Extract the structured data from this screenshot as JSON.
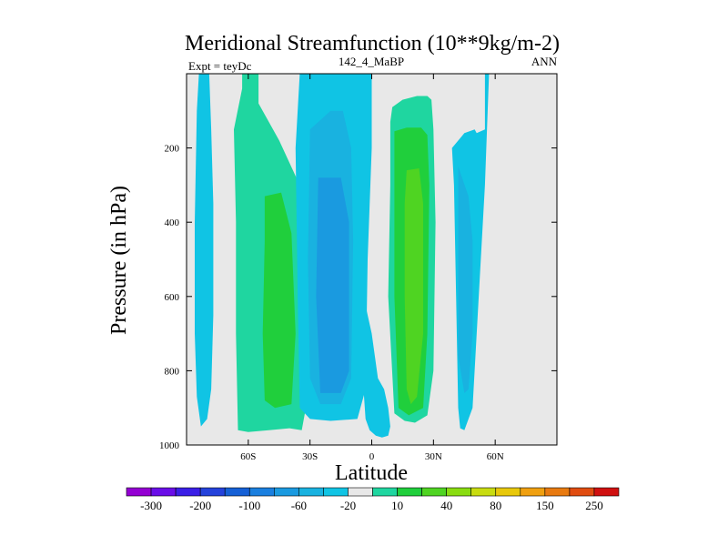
{
  "chart_data": {
    "type": "heatmap",
    "title": "Meridional Streamfunction (10**9kg/m-2)",
    "left_string": "Expt = teyDc",
    "center_string": "142_4_MaBP",
    "right_string": "ANN",
    "xlabel": "Latitude",
    "ylabel": "Pressure (in hPa)",
    "xlim": [
      -90,
      90
    ],
    "ylim": [
      1000,
      0
    ],
    "xticks": [
      {
        "value": -60,
        "label": "60S"
      },
      {
        "value": -30,
        "label": "30S"
      },
      {
        "value": 0,
        "label": "0"
      },
      {
        "value": 30,
        "label": "30N"
      },
      {
        "value": 60,
        "label": "60N"
      }
    ],
    "yticks": [
      {
        "value": 200,
        "label": "200"
      },
      {
        "value": 400,
        "label": "400"
      },
      {
        "value": 600,
        "label": "600"
      },
      {
        "value": 800,
        "label": "800"
      },
      {
        "value": 1000,
        "label": "1000"
      }
    ],
    "background_color": "#e8e8e8",
    "colorbar": {
      "levels": [
        -300,
        -250,
        -200,
        -150,
        -100,
        -80,
        -60,
        -40,
        -20,
        -10,
        10,
        20,
        40,
        60,
        80,
        100,
        150,
        200,
        250,
        300
      ],
      "labels": [
        "-300",
        "-200",
        "-100",
        "-60",
        "-20",
        "10",
        "40",
        "80",
        "150",
        "250"
      ],
      "colors": [
        "#9400d3",
        "#6a0de8",
        "#3a1ee6",
        "#2442db",
        "#1560d6",
        "#1a7fdf",
        "#1a9ae0",
        "#19b2e0",
        "#10c4e4",
        "#e8e8e8",
        "#1fd6a0",
        "#20cf3c",
        "#4fd422",
        "#89dc10",
        "#c8dc10",
        "#e8c80a",
        "#f0a010",
        "#e87a10",
        "#e04c10",
        "#d01010"
      ]
    },
    "contours": [
      {
        "level": -10,
        "color": "#10c4e4",
        "lat": [
          -84,
          -79,
          -78,
          -77,
          -77,
          -78,
          -80,
          -83,
          -85,
          -86,
          -86,
          -85
        ],
        "p": [
          0,
          0,
          150,
          350,
          650,
          850,
          930,
          950,
          870,
          700,
          400,
          100
        ]
      },
      {
        "level": 10,
        "color": "#1fd6a0",
        "lat": [
          -63,
          -55,
          -55,
          -45,
          -35,
          -33,
          -32,
          -34,
          -40,
          -50,
          -60,
          -65,
          -66,
          -66,
          -67,
          -63
        ],
        "p": [
          0,
          0,
          80,
          180,
          300,
          600,
          900,
          960,
          955,
          960,
          965,
          960,
          700,
          400,
          150,
          40
        ]
      },
      {
        "level": 20,
        "color": "#20cf3c",
        "lat": [
          -52,
          -44,
          -39,
          -37,
          -39,
          -47,
          -52,
          -53,
          -52
        ],
        "p": [
          330,
          320,
          430,
          700,
          890,
          900,
          880,
          700,
          450
        ]
      },
      {
        "level": -10,
        "color": "#10c4e4",
        "lat": [
          -35,
          -25,
          -15,
          -8,
          0,
          0,
          -2,
          -3,
          -7,
          -20,
          -30,
          -35,
          -36,
          -37
        ],
        "p": [
          0,
          0,
          0,
          0,
          0,
          200,
          500,
          850,
          930,
          935,
          930,
          900,
          600,
          200
        ]
      },
      {
        "level": -20,
        "color": "#19b2e0",
        "lat": [
          -30,
          -20,
          -14,
          -10,
          -9,
          -10,
          -15,
          -25,
          -30,
          -31
        ],
        "p": [
          150,
          100,
          100,
          200,
          450,
          820,
          890,
          890,
          820,
          500
        ]
      },
      {
        "level": -40,
        "color": "#1a9ae0",
        "lat": [
          -26,
          -15,
          -11,
          -11,
          -15,
          -25,
          -27
        ],
        "p": [
          280,
          280,
          400,
          800,
          860,
          860,
          600
        ]
      },
      {
        "level": -10,
        "color": "#10c4e4",
        "lat": [
          -4,
          0,
          3,
          6,
          8,
          9,
          8,
          5,
          2,
          -1,
          -3,
          -4
        ],
        "p": [
          600,
          700,
          820,
          850,
          900,
          950,
          975,
          980,
          975,
          960,
          930,
          850
        ]
      },
      {
        "level": 10,
        "color": "#1fd6a0",
        "lat": [
          10,
          15,
          22,
          27,
          29,
          30,
          31,
          30,
          27,
          21,
          16,
          11,
          8,
          9,
          9
        ],
        "p": [
          90,
          70,
          60,
          60,
          70,
          150,
          400,
          800,
          920,
          940,
          935,
          915,
          600,
          300,
          130
        ]
      },
      {
        "level": 20,
        "color": "#20cf3c",
        "lat": [
          11,
          17,
          24,
          27,
          28,
          27,
          25,
          18,
          13,
          11,
          11
        ],
        "p": [
          155,
          145,
          145,
          165,
          300,
          700,
          900,
          920,
          900,
          600,
          300
        ]
      },
      {
        "level": 40,
        "color": "#4fd422",
        "lat": [
          17,
          23,
          25,
          25,
          22,
          19,
          17,
          16,
          16
        ],
        "p": [
          260,
          255,
          350,
          700,
          870,
          890,
          850,
          600,
          350
        ]
      },
      {
        "level": -10,
        "color": "#10c4e4",
        "lat": [
          39,
          45,
          50,
          51,
          55,
          55,
          57,
          55,
          52,
          49,
          45,
          43,
          42,
          41,
          40
        ],
        "p": [
          200,
          160,
          150,
          160,
          150,
          0,
          0,
          300,
          600,
          900,
          960,
          955,
          900,
          600,
          300
        ]
      },
      {
        "level": -20,
        "color": "#19b2e0",
        "lat": [
          42,
          47,
          49,
          49,
          47,
          45,
          42,
          42,
          42
        ],
        "p": [
          250,
          330,
          450,
          700,
          850,
          860,
          760,
          600,
          450
        ]
      }
    ]
  }
}
